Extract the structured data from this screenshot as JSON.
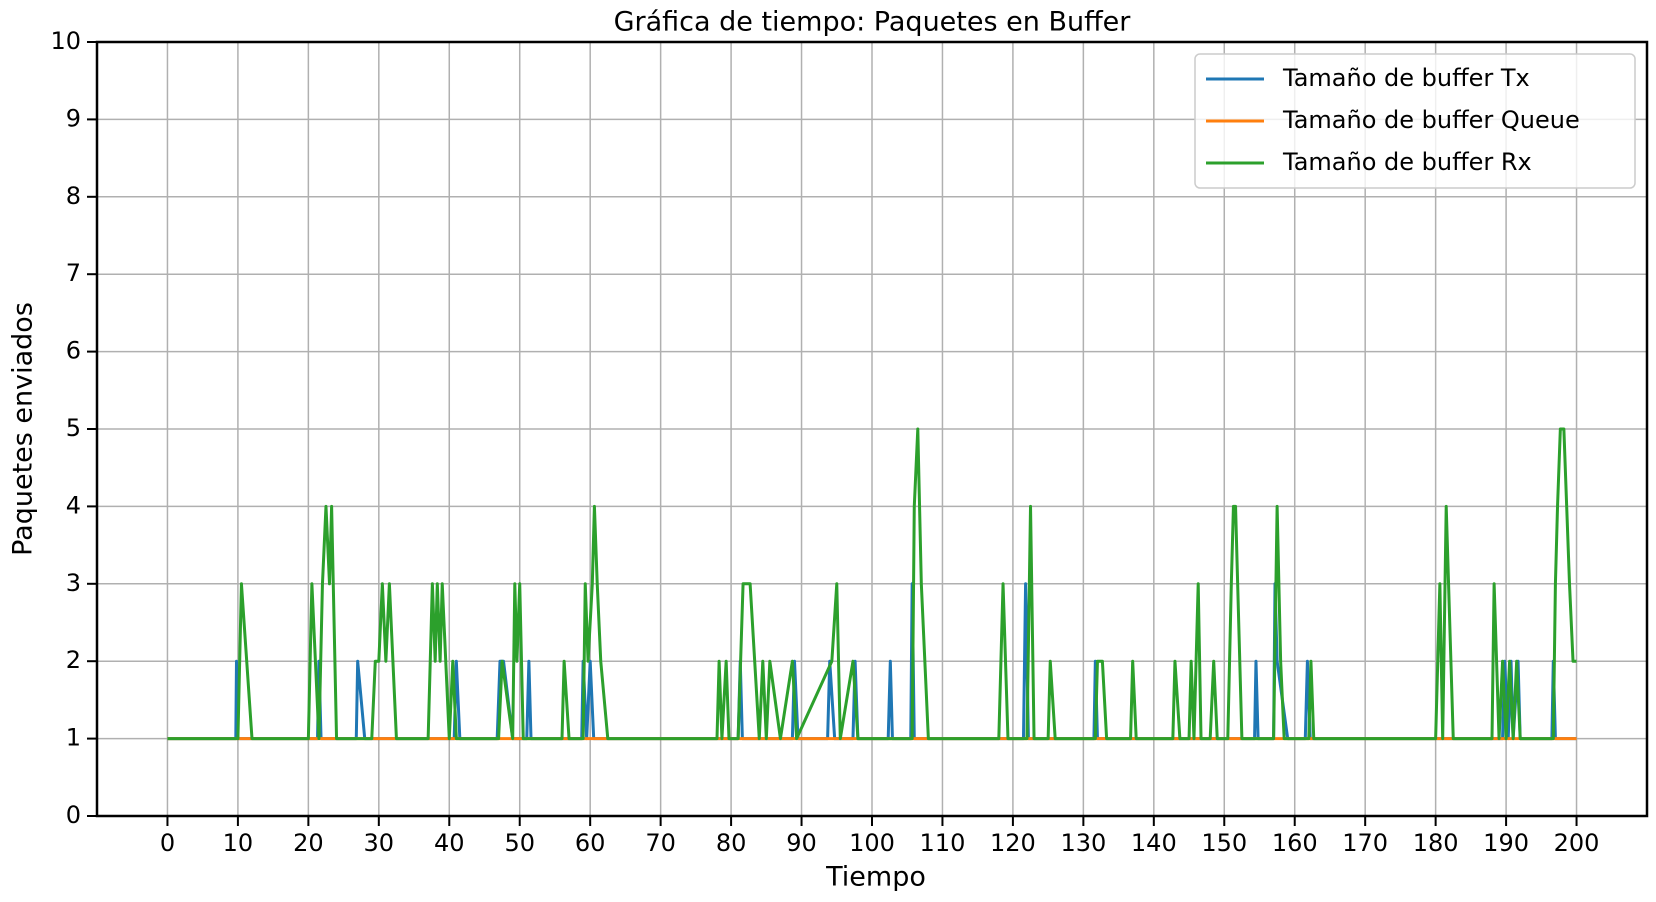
{
  "chart_data": {
    "type": "line",
    "title": "Gráfica de tiempo: Paquetes en Buffer",
    "x_label": "Tiempo",
    "y_label": "Paquetes enviados",
    "xlim": [
      -10,
      210
    ],
    "ylim": [
      0,
      10
    ],
    "xticks": [
      0,
      10,
      20,
      30,
      40,
      50,
      60,
      70,
      80,
      90,
      100,
      110,
      120,
      130,
      140,
      150,
      160,
      170,
      180,
      190,
      200
    ],
    "yticks": [
      0,
      1,
      2,
      3,
      4,
      5,
      6,
      7,
      8,
      9,
      10
    ],
    "grid": true,
    "legend": "upper right",
    "series": [
      {
        "name": "Tamaño de buffer Tx",
        "color": "#1f77b4",
        "x": [
          0,
          9.7,
          9.8,
          10,
          21.3,
          21.5,
          21.8,
          26.8,
          27,
          28,
          40.7,
          41,
          41.5,
          46.8,
          47.2,
          47.7,
          49,
          51,
          51.3,
          51.6,
          58.8,
          59,
          59.5,
          60,
          60.5,
          81,
          81.3,
          81.6,
          88.7,
          89,
          89.5,
          93.7,
          94,
          94.7,
          97.3,
          97.6,
          98,
          102.3,
          102.6,
          102.9,
          105.5,
          105.7,
          106,
          121.5,
          121.8,
          122.2,
          131.5,
          131.7,
          132,
          154.3,
          154.5,
          154.8,
          157,
          157.2,
          157.5,
          159,
          161.5,
          161.8,
          162.2,
          189.5,
          189.8,
          190.3,
          190.7,
          191,
          191.7,
          192,
          196.5,
          196.7,
          197,
          200
        ],
        "values": [
          1,
          1,
          2,
          1,
          1,
          2,
          1,
          1,
          2,
          1,
          1,
          2,
          1,
          1,
          2,
          2,
          1,
          1,
          2,
          1,
          1,
          2,
          1,
          2,
          1,
          1,
          2,
          1,
          1,
          2,
          1,
          1,
          2,
          1,
          1,
          2,
          1,
          1,
          2,
          1,
          1,
          3,
          1,
          1,
          3,
          1,
          1,
          2,
          1,
          1,
          2,
          1,
          1,
          3,
          2,
          1,
          1,
          2,
          1,
          1,
          2,
          1,
          2,
          1,
          2,
          1,
          1,
          2,
          1,
          1
        ]
      },
      {
        "name": "Tamaño de buffer Queue",
        "color": "#ff7f0e",
        "x": [
          0,
          200
        ],
        "values": [
          1,
          1
        ]
      },
      {
        "name": "Tamaño de buffer Rx",
        "color": "#2ca02c",
        "x": [
          0,
          10,
          10.5,
          12,
          20,
          20.5,
          21,
          21.5,
          22,
          22.5,
          23,
          23.3,
          24,
          29,
          29.5,
          30,
          30.5,
          31,
          31.5,
          32.5,
          37,
          37.3,
          37.6,
          38,
          38.3,
          38.7,
          39,
          40,
          40.5,
          41,
          47,
          47.5,
          49,
          49.3,
          49.6,
          50,
          50.5,
          56,
          56.3,
          57,
          59,
          59.3,
          59.7,
          60.3,
          60.6,
          61,
          61.5,
          62.5,
          78,
          78.3,
          78.7,
          79.3,
          79.7,
          81,
          81.7,
          82.7,
          84,
          84.5,
          85,
          85.5,
          87,
          88.7,
          89.3,
          94.3,
          95,
          95.5,
          97.3,
          98,
          105.7,
          106,
          106.5,
          107,
          108,
          118,
          118.3,
          118.6,
          119.3,
          122,
          122.5,
          123,
          125,
          125.3,
          126,
          131.7,
          132,
          132.7,
          133.3,
          136.7,
          137,
          137.5,
          142.7,
          143,
          143.7,
          145,
          145.3,
          145.7,
          146.3,
          146.7,
          148,
          148.5,
          149,
          150.5,
          151,
          151.3,
          151.6,
          152.5,
          157,
          157.5,
          158,
          158.5,
          162,
          162.3,
          162.7,
          180,
          180.3,
          180.6,
          181,
          181.5,
          182.5,
          188,
          188.3,
          189,
          189.5,
          190,
          190.5,
          191,
          191.5,
          192,
          196.7,
          197,
          197.3,
          197.7,
          198.2,
          199,
          199.5,
          200
        ],
        "values": [
          1,
          1,
          3,
          1,
          1,
          3,
          2,
          1,
          3,
          4,
          3,
          4,
          1,
          1,
          2,
          2,
          3,
          2,
          3,
          1,
          1,
          2,
          3,
          2,
          3,
          2,
          3,
          1,
          2,
          1,
          1,
          2,
          1,
          3,
          2,
          3,
          1,
          1,
          2,
          1,
          1,
          3,
          2,
          3,
          4,
          3,
          2,
          1,
          1,
          2,
          1,
          2,
          1,
          1,
          3,
          3,
          1,
          2,
          1,
          2,
          1,
          2,
          1,
          2,
          3,
          1,
          2,
          1,
          1,
          4,
          5,
          3,
          1,
          1,
          2,
          3,
          1,
          1,
          4,
          1,
          1,
          2,
          1,
          1,
          2,
          2,
          1,
          1,
          2,
          1,
          1,
          2,
          1,
          1,
          2,
          1,
          3,
          1,
          1,
          2,
          1,
          1,
          3,
          4,
          4,
          1,
          1,
          4,
          2,
          1,
          1,
          2,
          1,
          1,
          2,
          3,
          1,
          4,
          1,
          1,
          3,
          1,
          2,
          1,
          2,
          1,
          2,
          1,
          1,
          3,
          4,
          5,
          5,
          3,
          2,
          2
        ]
      }
    ]
  }
}
